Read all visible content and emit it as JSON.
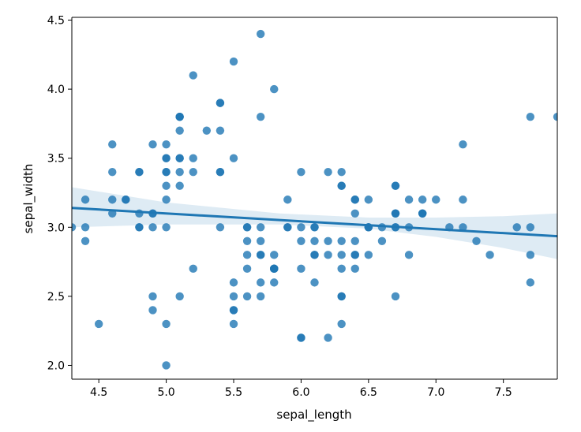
{
  "chart_data": {
    "type": "scatter",
    "title": "",
    "xlabel": "sepal_length",
    "ylabel": "sepal_width",
    "xlim": [
      4.3,
      7.9
    ],
    "ylim": [
      1.9,
      4.52
    ],
    "x_ticks": [
      "4.5",
      "5.0",
      "5.5",
      "6.0",
      "6.5",
      "7.0",
      "7.5"
    ],
    "y_ticks": [
      "2.0",
      "2.5",
      "3.0",
      "3.5",
      "4.0",
      "4.5"
    ],
    "grid": false,
    "legend": "none",
    "colors": {
      "points": "#1f77b4",
      "line": "#1f77b4",
      "band": "#1f77b4"
    },
    "points": [
      [
        5.1,
        3.5
      ],
      [
        4.9,
        3.0
      ],
      [
        4.7,
        3.2
      ],
      [
        4.6,
        3.1
      ],
      [
        5.0,
        3.6
      ],
      [
        5.4,
        3.9
      ],
      [
        4.6,
        3.4
      ],
      [
        5.0,
        3.4
      ],
      [
        4.4,
        2.9
      ],
      [
        4.9,
        3.1
      ],
      [
        5.4,
        3.7
      ],
      [
        4.8,
        3.4
      ],
      [
        4.8,
        3.0
      ],
      [
        4.3,
        3.0
      ],
      [
        5.8,
        4.0
      ],
      [
        5.7,
        4.4
      ],
      [
        5.4,
        3.9
      ],
      [
        5.1,
        3.5
      ],
      [
        5.7,
        3.8
      ],
      [
        5.1,
        3.8
      ],
      [
        5.4,
        3.4
      ],
      [
        5.1,
        3.7
      ],
      [
        4.6,
        3.6
      ],
      [
        5.1,
        3.3
      ],
      [
        4.8,
        3.4
      ],
      [
        5.0,
        3.0
      ],
      [
        5.0,
        3.4
      ],
      [
        5.2,
        3.5
      ],
      [
        5.2,
        3.4
      ],
      [
        4.7,
        3.2
      ],
      [
        4.8,
        3.1
      ],
      [
        5.4,
        3.4
      ],
      [
        5.2,
        4.1
      ],
      [
        5.5,
        4.2
      ],
      [
        4.9,
        3.1
      ],
      [
        5.0,
        3.2
      ],
      [
        5.5,
        3.5
      ],
      [
        4.9,
        3.6
      ],
      [
        4.4,
        3.0
      ],
      [
        5.1,
        3.4
      ],
      [
        5.0,
        3.5
      ],
      [
        4.5,
        2.3
      ],
      [
        4.4,
        3.2
      ],
      [
        5.0,
        3.5
      ],
      [
        5.1,
        3.8
      ],
      [
        4.8,
        3.0
      ],
      [
        5.1,
        3.8
      ],
      [
        4.6,
        3.2
      ],
      [
        5.3,
        3.7
      ],
      [
        5.0,
        3.3
      ],
      [
        7.0,
        3.2
      ],
      [
        6.4,
        3.2
      ],
      [
        6.9,
        3.1
      ],
      [
        5.5,
        2.3
      ],
      [
        6.5,
        2.8
      ],
      [
        5.7,
        2.8
      ],
      [
        6.3,
        3.3
      ],
      [
        4.9,
        2.4
      ],
      [
        6.6,
        2.9
      ],
      [
        5.2,
        2.7
      ],
      [
        5.0,
        2.0
      ],
      [
        5.9,
        3.0
      ],
      [
        6.0,
        2.2
      ],
      [
        6.1,
        2.9
      ],
      [
        5.6,
        2.9
      ],
      [
        6.7,
        3.1
      ],
      [
        5.6,
        3.0
      ],
      [
        5.8,
        2.7
      ],
      [
        6.2,
        2.2
      ],
      [
        5.6,
        2.5
      ],
      [
        5.9,
        3.2
      ],
      [
        6.1,
        2.8
      ],
      [
        6.3,
        2.5
      ],
      [
        6.1,
        2.8
      ],
      [
        6.4,
        2.9
      ],
      [
        6.6,
        3.0
      ],
      [
        6.8,
        2.8
      ],
      [
        6.7,
        3.0
      ],
      [
        6.0,
        2.9
      ],
      [
        5.7,
        2.6
      ],
      [
        5.5,
        2.4
      ],
      [
        5.5,
        2.4
      ],
      [
        5.8,
        2.7
      ],
      [
        6.0,
        2.7
      ],
      [
        5.4,
        3.0
      ],
      [
        6.0,
        3.4
      ],
      [
        6.7,
        3.1
      ],
      [
        6.3,
        2.3
      ],
      [
        5.6,
        3.0
      ],
      [
        5.5,
        2.5
      ],
      [
        5.5,
        2.6
      ],
      [
        6.1,
        3.0
      ],
      [
        5.8,
        2.6
      ],
      [
        5.0,
        2.3
      ],
      [
        5.6,
        2.7
      ],
      [
        5.7,
        3.0
      ],
      [
        5.7,
        2.9
      ],
      [
        6.2,
        2.9
      ],
      [
        5.1,
        2.5
      ],
      [
        5.7,
        2.8
      ],
      [
        6.3,
        3.3
      ],
      [
        5.8,
        2.7
      ],
      [
        7.1,
        3.0
      ],
      [
        6.3,
        2.9
      ],
      [
        6.5,
        3.0
      ],
      [
        7.6,
        3.0
      ],
      [
        4.9,
        2.5
      ],
      [
        7.3,
        2.9
      ],
      [
        6.7,
        2.5
      ],
      [
        7.2,
        3.6
      ],
      [
        6.5,
        3.2
      ],
      [
        6.4,
        2.7
      ],
      [
        6.8,
        3.0
      ],
      [
        5.7,
        2.5
      ],
      [
        5.8,
        2.8
      ],
      [
        6.4,
        3.2
      ],
      [
        6.5,
        3.0
      ],
      [
        7.7,
        3.8
      ],
      [
        7.7,
        2.6
      ],
      [
        6.0,
        2.2
      ],
      [
        6.9,
        3.2
      ],
      [
        5.6,
        2.8
      ],
      [
        7.7,
        2.8
      ],
      [
        6.3,
        2.7
      ],
      [
        6.7,
        3.3
      ],
      [
        7.2,
        3.2
      ],
      [
        6.2,
        2.8
      ],
      [
        6.1,
        3.0
      ],
      [
        6.4,
        2.8
      ],
      [
        7.2,
        3.0
      ],
      [
        7.4,
        2.8
      ],
      [
        7.9,
        3.8
      ],
      [
        6.4,
        2.8
      ],
      [
        6.3,
        2.8
      ],
      [
        6.1,
        2.6
      ],
      [
        7.7,
        3.0
      ],
      [
        6.3,
        3.4
      ],
      [
        6.4,
        3.1
      ],
      [
        6.0,
        3.0
      ],
      [
        6.9,
        3.1
      ],
      [
        6.7,
        3.1
      ],
      [
        6.9,
        3.1
      ],
      [
        5.8,
        2.7
      ],
      [
        6.8,
        3.2
      ],
      [
        6.7,
        3.3
      ],
      [
        6.7,
        3.0
      ],
      [
        6.3,
        2.5
      ],
      [
        6.5,
        3.0
      ],
      [
        6.2,
        3.4
      ],
      [
        5.9,
        3.0
      ]
    ],
    "regression": {
      "x": [
        4.3,
        7.9
      ],
      "y": [
        3.14,
        2.935
      ]
    },
    "confidence_band": {
      "x": [
        4.3,
        5.0,
        5.84,
        6.5,
        7.0,
        7.5,
        7.9
      ],
      "upper": [
        3.29,
        3.18,
        3.1,
        3.07,
        3.07,
        3.08,
        3.1
      ],
      "lower": [
        3.0,
        3.02,
        3.02,
        2.99,
        2.93,
        2.85,
        2.77
      ]
    }
  }
}
